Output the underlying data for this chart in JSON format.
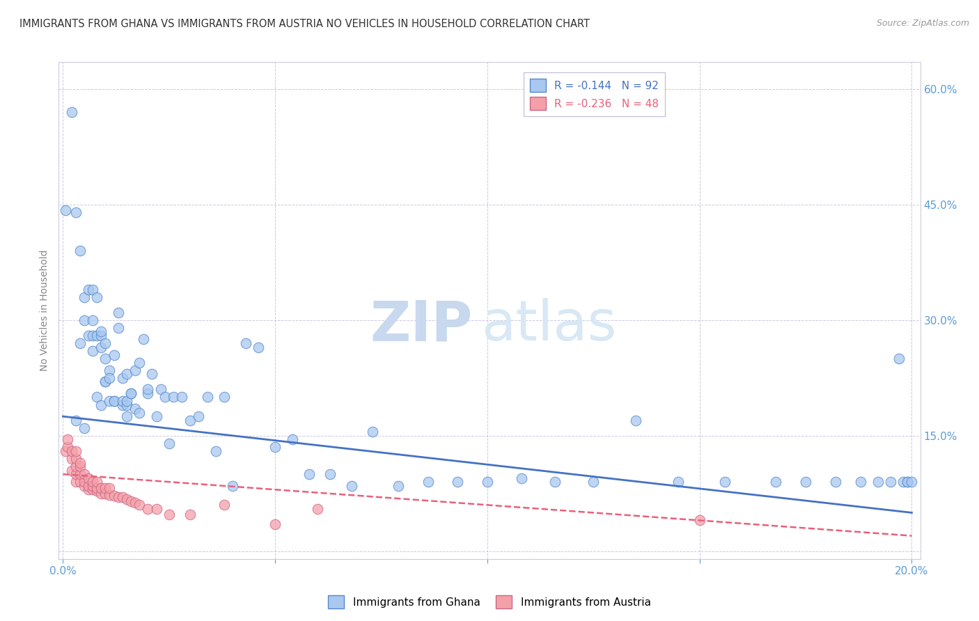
{
  "title": "IMMIGRANTS FROM GHANA VS IMMIGRANTS FROM AUSTRIA NO VEHICLES IN HOUSEHOLD CORRELATION CHART",
  "source": "Source: ZipAtlas.com",
  "ylabel": "No Vehicles in Household",
  "xlim": [
    -0.001,
    0.202
  ],
  "ylim": [
    -0.01,
    0.635
  ],
  "ghana_R": -0.144,
  "ghana_N": 92,
  "austria_R": -0.236,
  "austria_N": 48,
  "ghana_color": "#A8C8F0",
  "austria_color": "#F4A0A8",
  "ghana_edge_color": "#5588CC",
  "austria_edge_color": "#CC6688",
  "ghana_line_color": "#4472C4",
  "austria_line_color": "#E8607A",
  "watermark_zip_color": "#C8D8EE",
  "watermark_atlas_color": "#D8E8F4",
  "legend_label_ghana": "Immigrants from Ghana",
  "legend_label_austria": "Immigrants from Austria",
  "axis_tick_color": "#5B9BD5",
  "ghana_x": [
    0.0005,
    0.002,
    0.003,
    0.003,
    0.004,
    0.004,
    0.005,
    0.005,
    0.005,
    0.006,
    0.006,
    0.007,
    0.007,
    0.007,
    0.007,
    0.008,
    0.008,
    0.008,
    0.009,
    0.009,
    0.009,
    0.009,
    0.01,
    0.01,
    0.01,
    0.01,
    0.011,
    0.011,
    0.011,
    0.012,
    0.012,
    0.012,
    0.013,
    0.013,
    0.014,
    0.014,
    0.014,
    0.015,
    0.015,
    0.015,
    0.015,
    0.016,
    0.016,
    0.017,
    0.017,
    0.018,
    0.018,
    0.019,
    0.02,
    0.02,
    0.021,
    0.022,
    0.023,
    0.024,
    0.025,
    0.026,
    0.028,
    0.03,
    0.032,
    0.034,
    0.036,
    0.038,
    0.04,
    0.043,
    0.046,
    0.05,
    0.054,
    0.058,
    0.063,
    0.068,
    0.073,
    0.079,
    0.086,
    0.093,
    0.1,
    0.108,
    0.116,
    0.125,
    0.135,
    0.145,
    0.156,
    0.168,
    0.175,
    0.182,
    0.188,
    0.192,
    0.195,
    0.197,
    0.198,
    0.199,
    0.199,
    0.2
  ],
  "ghana_y": [
    0.443,
    0.57,
    0.17,
    0.44,
    0.27,
    0.39,
    0.33,
    0.16,
    0.3,
    0.28,
    0.34,
    0.3,
    0.28,
    0.34,
    0.26,
    0.2,
    0.28,
    0.33,
    0.19,
    0.28,
    0.265,
    0.285,
    0.22,
    0.25,
    0.22,
    0.27,
    0.195,
    0.235,
    0.225,
    0.195,
    0.255,
    0.195,
    0.29,
    0.31,
    0.19,
    0.195,
    0.225,
    0.19,
    0.195,
    0.23,
    0.175,
    0.205,
    0.205,
    0.185,
    0.235,
    0.18,
    0.245,
    0.275,
    0.205,
    0.21,
    0.23,
    0.175,
    0.21,
    0.2,
    0.14,
    0.2,
    0.2,
    0.17,
    0.175,
    0.2,
    0.13,
    0.2,
    0.085,
    0.27,
    0.265,
    0.135,
    0.145,
    0.1,
    0.1,
    0.085,
    0.155,
    0.085,
    0.09,
    0.09,
    0.09,
    0.095,
    0.09,
    0.09,
    0.17,
    0.09,
    0.09,
    0.09,
    0.09,
    0.09,
    0.09,
    0.09,
    0.09,
    0.25,
    0.09,
    0.09,
    0.09,
    0.09
  ],
  "austria_x": [
    0.0005,
    0.001,
    0.001,
    0.002,
    0.002,
    0.002,
    0.003,
    0.003,
    0.003,
    0.003,
    0.003,
    0.004,
    0.004,
    0.004,
    0.004,
    0.005,
    0.005,
    0.005,
    0.006,
    0.006,
    0.006,
    0.007,
    0.007,
    0.007,
    0.008,
    0.008,
    0.008,
    0.009,
    0.009,
    0.01,
    0.01,
    0.011,
    0.011,
    0.012,
    0.013,
    0.014,
    0.015,
    0.016,
    0.017,
    0.018,
    0.02,
    0.022,
    0.025,
    0.03,
    0.038,
    0.05,
    0.06,
    0.15
  ],
  "austria_y": [
    0.13,
    0.135,
    0.145,
    0.105,
    0.12,
    0.13,
    0.09,
    0.1,
    0.11,
    0.12,
    0.13,
    0.09,
    0.1,
    0.11,
    0.115,
    0.085,
    0.09,
    0.1,
    0.08,
    0.085,
    0.095,
    0.08,
    0.085,
    0.09,
    0.078,
    0.082,
    0.09,
    0.075,
    0.082,
    0.075,
    0.082,
    0.073,
    0.082,
    0.072,
    0.07,
    0.07,
    0.068,
    0.065,
    0.063,
    0.06,
    0.055,
    0.055,
    0.048,
    0.048,
    0.06,
    0.035,
    0.055,
    0.04
  ],
  "ghana_trend_x": [
    0.0,
    0.2
  ],
  "ghana_trend_y": [
    0.175,
    0.05
  ],
  "austria_trend_x": [
    0.0,
    0.2
  ],
  "austria_trend_y": [
    0.1,
    0.02
  ]
}
